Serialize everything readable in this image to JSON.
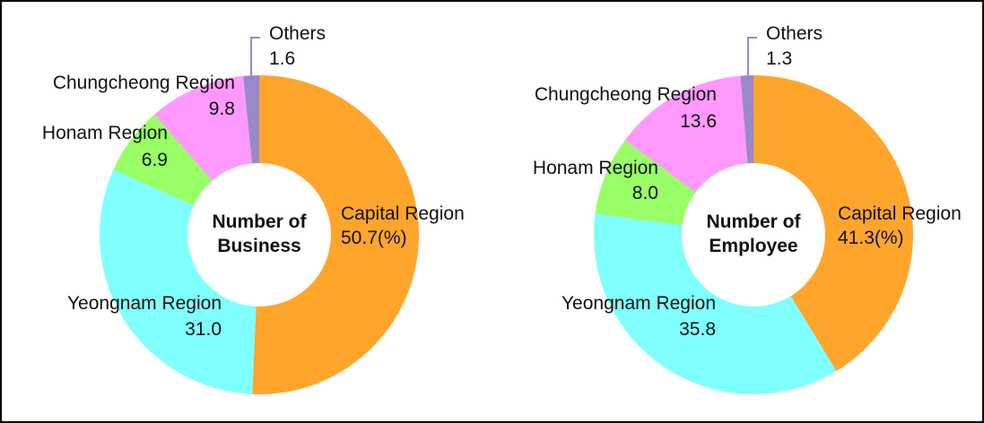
{
  "chart_data": [
    {
      "type": "donut",
      "title": "Number of Business",
      "categories": [
        "Capital Region",
        "Yeongnam Region",
        "Honam Region",
        "Chungcheong Region",
        "Others"
      ],
      "values": [
        50.7,
        31.0,
        6.9,
        9.8,
        1.6
      ],
      "value_labels": [
        "50.7(%)",
        "31.0",
        "6.9",
        "9.8",
        "1.6"
      ],
      "colors": [
        "#ffa52c",
        "#80ffff",
        "#99ff66",
        "#ff99ff",
        "#9988cc"
      ]
    },
    {
      "type": "donut",
      "title": "Number of Employee",
      "categories": [
        "Capital Region",
        "Yeongnam Region",
        "Honam Region",
        "Chungcheong Region",
        "Others"
      ],
      "values": [
        41.3,
        35.8,
        8.0,
        13.6,
        1.3
      ],
      "value_labels": [
        "41.3(%)",
        "35.8",
        "8.0",
        "13.6",
        "1.3"
      ],
      "colors": [
        "#ffa52c",
        "#80ffff",
        "#99ff66",
        "#ff99ff",
        "#9988cc"
      ]
    }
  ]
}
